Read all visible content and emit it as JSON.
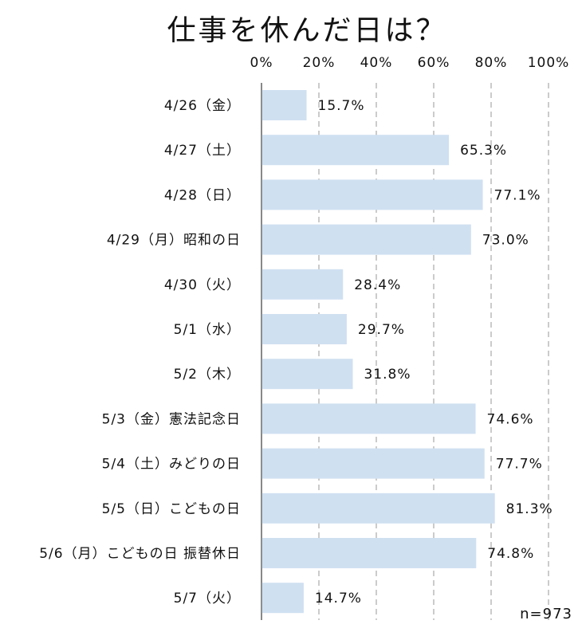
{
  "chart_data": {
    "type": "bar",
    "orientation": "horizontal",
    "title": "仕事を休んだ日は？",
    "categories": [
      "4/26（金）",
      "4/27（土）",
      "4/28（日）",
      "4/29（月）昭和の日",
      "4/30（火）",
      "5/1（水）",
      "5/2（木）",
      "5/3（金）憲法記念日",
      "5/4（土）みどりの日",
      "5/5（日）こどもの日",
      "5/6（月）こどもの日 振替休日",
      "5/7（火）"
    ],
    "values": [
      15.7,
      65.3,
      77.1,
      73.0,
      28.4,
      29.7,
      31.8,
      74.6,
      77.7,
      81.3,
      74.8,
      14.7
    ],
    "value_labels": [
      "15.7%",
      "65.3%",
      "77.1%",
      "73.0%",
      "28.4%",
      "29.7%",
      "31.8%",
      "74.6%",
      "77.7%",
      "81.3%",
      "74.8%",
      "14.7%"
    ],
    "xlim": [
      0,
      100
    ],
    "ticks": [
      0,
      20,
      40,
      60,
      80,
      100
    ],
    "tick_labels": [
      "0%",
      "20%",
      "40%",
      "60%",
      "80%",
      "100%"
    ],
    "grid": "dashed vertical",
    "legend": "none",
    "note": "n=973",
    "colors": {
      "bar": "#cfe0f1",
      "grid": "#a9a9a9",
      "axis": "#555555",
      "text": "#111111"
    }
  }
}
